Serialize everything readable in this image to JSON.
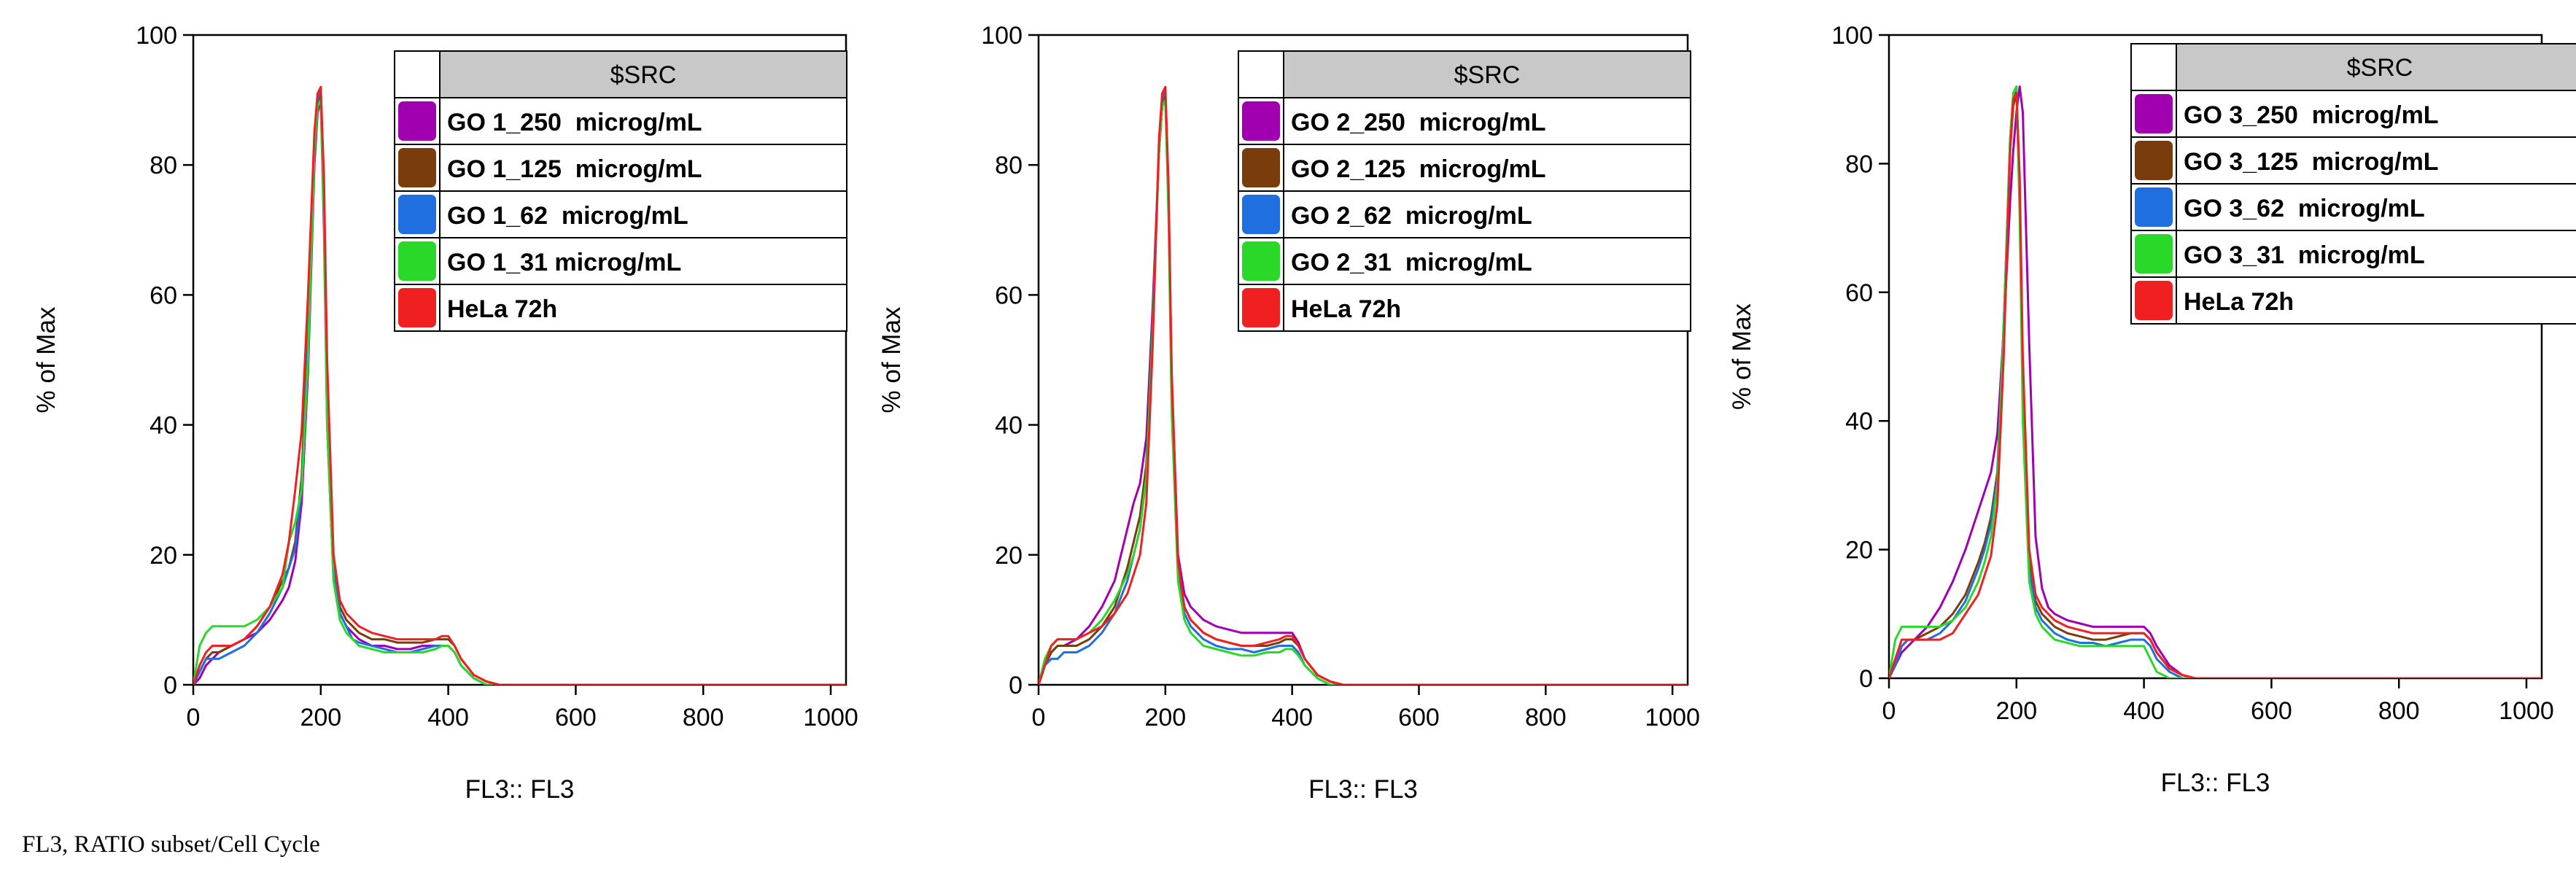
{
  "footer_note": "FL3, RATIO subset/Cell Cycle",
  "legend_header": "$SRC",
  "series_colors": [
    "#a000b0",
    "#7a3c0a",
    "#1f6fe0",
    "#2ad82a",
    "#f02020"
  ],
  "chart_data": [
    {
      "type": "line",
      "xlabel": "FL3:: FL3",
      "ylabel": "% of Max",
      "xlim": [
        0,
        1024
      ],
      "ylim": [
        0,
        100
      ],
      "xticks": [
        0,
        200,
        400,
        600,
        800,
        1000
      ],
      "yticks": [
        0,
        20,
        40,
        60,
        80,
        100
      ],
      "x": [
        0,
        10,
        20,
        30,
        40,
        60,
        80,
        100,
        120,
        140,
        150,
        160,
        170,
        180,
        190,
        195,
        200,
        205,
        210,
        220,
        230,
        240,
        250,
        260,
        280,
        300,
        320,
        340,
        360,
        380,
        390,
        400,
        410,
        420,
        440,
        460,
        480,
        500,
        550,
        600,
        700,
        800,
        900,
        1000,
        1024
      ],
      "series": [
        {
          "name": "GO 1_250  microg/mL",
          "values": [
            0,
            1,
            3,
            4,
            5,
            6,
            7,
            8,
            10,
            13,
            15,
            19,
            28,
            48,
            80,
            88,
            90,
            70,
            40,
            16,
            11,
            9,
            8,
            7,
            6,
            6,
            5.5,
            5.5,
            6,
            6,
            6,
            6,
            5,
            3,
            1,
            0,
            0,
            0,
            0,
            0,
            0,
            0,
            0,
            0,
            0
          ]
        },
        {
          "name": "GO 1_125  microg/mL",
          "values": [
            0,
            2,
            4,
            5,
            5,
            6,
            7,
            9,
            12,
            16,
            18,
            22,
            32,
            55,
            82,
            89,
            91,
            74,
            42,
            18,
            12,
            10,
            9,
            8,
            7,
            7,
            6.5,
            6.5,
            6.5,
            7,
            7,
            7,
            6,
            4,
            1.5,
            0.5,
            0,
            0,
            0,
            0,
            0,
            0,
            0,
            0,
            0
          ]
        },
        {
          "name": "GO 1_62  microg/mL",
          "values": [
            0,
            2,
            4,
            4,
            4,
            5,
            6,
            8,
            11,
            15,
            18,
            21,
            30,
            52,
            82,
            90,
            92,
            75,
            45,
            18,
            11,
            9,
            7,
            6.5,
            6,
            5.5,
            5,
            5,
            5.5,
            6,
            6,
            6,
            5,
            3,
            1,
            0,
            0,
            0,
            0,
            0,
            0,
            0,
            0,
            0,
            0
          ]
        },
        {
          "name": "GO 1_31 microg/mL",
          "values": [
            0,
            6,
            8,
            9,
            9,
            9,
            9,
            10,
            12,
            15,
            22,
            25,
            30,
            50,
            82,
            89,
            90,
            72,
            40,
            16,
            10,
            8,
            7,
            6,
            5.5,
            5,
            5,
            5,
            5,
            5.5,
            6,
            6,
            5,
            3,
            1,
            0,
            0,
            0,
            0,
            0,
            0,
            0,
            0,
            0,
            0
          ]
        },
        {
          "name": "HeLa 72h",
          "values": [
            0,
            3,
            5,
            6,
            6,
            6,
            7,
            9,
            12,
            17,
            22,
            30,
            39,
            60,
            85,
            91,
            92,
            78,
            50,
            20,
            13,
            11,
            10,
            9,
            8,
            7.5,
            7,
            7,
            7,
            7,
            7.5,
            7.5,
            6,
            4,
            1.5,
            0.5,
            0,
            0,
            0,
            0,
            0,
            0,
            0,
            0,
            0
          ]
        }
      ]
    },
    {
      "type": "line",
      "xlabel": "FL3:: FL3",
      "ylabel": "% of Max",
      "xlim": [
        0,
        1024
      ],
      "ylim": [
        0,
        100
      ],
      "xticks": [
        0,
        200,
        400,
        600,
        800,
        1000
      ],
      "yticks": [
        0,
        20,
        40,
        60,
        80,
        100
      ],
      "x": [
        0,
        10,
        20,
        30,
        40,
        60,
        80,
        100,
        120,
        140,
        150,
        160,
        170,
        180,
        190,
        195,
        200,
        205,
        210,
        220,
        230,
        240,
        250,
        260,
        280,
        300,
        320,
        340,
        360,
        380,
        390,
        400,
        410,
        420,
        440,
        460,
        480,
        500,
        550,
        600,
        700,
        800,
        900,
        1000,
        1024
      ],
      "series": [
        {
          "name": "GO 2_250  microg/mL",
          "values": [
            0,
            3,
            5,
            6,
            6,
            7,
            9,
            12,
            16,
            24,
            28,
            31,
            38,
            58,
            82,
            89,
            91,
            75,
            48,
            20,
            14,
            12,
            11,
            10,
            9,
            8.5,
            8,
            8,
            8,
            8,
            8,
            8,
            6.5,
            4,
            1.5,
            0.5,
            0,
            0,
            0,
            0,
            0,
            0,
            0,
            0,
            0
          ]
        },
        {
          "name": "GO 2_125  microg/mL",
          "values": [
            0,
            3,
            5,
            6,
            6,
            6,
            7,
            9,
            12,
            18,
            22,
            26,
            34,
            56,
            82,
            89,
            91,
            74,
            44,
            18,
            12,
            10,
            9,
            8,
            7,
            6.5,
            6,
            6,
            6,
            6.5,
            7,
            7,
            6,
            4,
            1.5,
            0.5,
            0,
            0,
            0,
            0,
            0,
            0,
            0,
            0,
            0
          ]
        },
        {
          "name": "GO 2_62  microg/mL",
          "values": [
            0,
            3,
            4,
            4,
            5,
            5,
            6,
            8,
            11,
            16,
            20,
            24,
            32,
            55,
            83,
            90,
            92,
            76,
            46,
            18,
            11,
            9,
            8,
            7,
            6,
            5.5,
            5.5,
            5,
            5.5,
            6,
            6,
            6,
            5,
            3,
            1,
            0,
            0,
            0,
            0,
            0,
            0,
            0,
            0,
            0,
            0
          ]
        },
        {
          "name": "GO 2_31  microg/mL",
          "values": [
            0,
            4,
            6,
            7,
            7,
            7,
            8,
            10,
            13,
            17,
            20,
            24,
            32,
            54,
            82,
            89,
            90,
            72,
            42,
            16,
            10,
            8,
            7,
            6,
            5.5,
            5,
            4.5,
            4.5,
            5,
            5,
            5.5,
            5.5,
            4.5,
            3,
            1,
            0,
            0,
            0,
            0,
            0,
            0,
            0,
            0,
            0,
            0
          ]
        },
        {
          "name": "HeLa 72h",
          "values": [
            0,
            3,
            6,
            7,
            7,
            7,
            8,
            9,
            11,
            14,
            17,
            20,
            28,
            52,
            84,
            91,
            92,
            77,
            48,
            19,
            12,
            10,
            9,
            8,
            7,
            6.5,
            6,
            6,
            6.5,
            7,
            7.5,
            7.5,
            6,
            4,
            1.5,
            0.5,
            0,
            0,
            0,
            0,
            0,
            0,
            0,
            0,
            0
          ]
        }
      ]
    },
    {
      "type": "line",
      "xlabel": "FL3:: FL3",
      "ylabel": "% of Max",
      "xlim": [
        0,
        1024
      ],
      "ylim": [
        0,
        100
      ],
      "xticks": [
        0,
        200,
        400,
        600,
        800,
        1000
      ],
      "yticks": [
        0,
        20,
        40,
        60,
        80,
        100
      ],
      "x": [
        0,
        10,
        20,
        30,
        40,
        60,
        80,
        100,
        120,
        140,
        150,
        160,
        170,
        180,
        190,
        195,
        200,
        205,
        210,
        220,
        230,
        240,
        250,
        260,
        280,
        300,
        320,
        340,
        360,
        380,
        390,
        400,
        410,
        420,
        440,
        460,
        480,
        500,
        550,
        600,
        700,
        800,
        900,
        1000,
        1024
      ],
      "series": [
        {
          "name": "GO 3_250  microg/mL",
          "values": [
            0,
            2,
            4,
            5,
            6,
            8,
            11,
            15,
            20,
            26,
            29,
            32,
            38,
            54,
            74,
            82,
            88,
            92,
            88,
            52,
            22,
            14,
            11,
            10,
            9,
            8.5,
            8,
            8,
            8,
            8,
            8,
            8,
            7,
            5,
            2,
            0.5,
            0,
            0,
            0,
            0,
            0,
            0,
            0,
            0,
            0
          ]
        },
        {
          "name": "GO 3_125  microg/mL",
          "values": [
            0,
            2,
            5,
            6,
            6,
            7,
            8,
            10,
            13,
            18,
            21,
            25,
            32,
            55,
            82,
            89,
            91,
            76,
            46,
            18,
            12,
            10,
            9,
            8,
            7,
            6.5,
            6,
            6,
            6.5,
            7,
            7,
            7,
            6,
            4,
            1.5,
            0.5,
            0,
            0,
            0,
            0,
            0,
            0,
            0,
            0,
            0
          ]
        },
        {
          "name": "GO 3_62  microg/mL",
          "values": [
            0,
            2,
            5,
            6,
            6,
            6,
            7,
            9,
            12,
            17,
            20,
            24,
            31,
            55,
            84,
            90,
            92,
            74,
            44,
            17,
            11,
            9,
            8,
            7,
            6,
            5.5,
            5.5,
            5,
            5.5,
            6,
            6,
            6,
            5,
            3,
            1,
            0,
            0,
            0,
            0,
            0,
            0,
            0,
            0,
            0,
            0
          ]
        },
        {
          "name": "GO 3_31  microg/mL",
          "values": [
            0,
            6,
            8,
            8,
            8,
            8,
            8,
            9,
            11,
            15,
            18,
            22,
            30,
            54,
            84,
            91,
            92,
            72,
            40,
            15,
            10,
            8,
            7,
            6,
            5.5,
            5,
            5,
            5,
            5,
            5,
            5,
            5,
            3,
            1,
            0,
            0,
            0,
            0,
            0,
            0,
            0,
            0,
            0,
            0,
            0
          ]
        },
        {
          "name": "HeLa 72h",
          "values": [
            0,
            3,
            6,
            6,
            6,
            6,
            6,
            7,
            10,
            13,
            16,
            19,
            27,
            50,
            82,
            90,
            91,
            78,
            50,
            20,
            13,
            11,
            10,
            9,
            8,
            7.5,
            7,
            7,
            7,
            7,
            7,
            7,
            6,
            4,
            1.5,
            0.5,
            0,
            0,
            0,
            0,
            0,
            0,
            0,
            0,
            0
          ]
        }
      ]
    }
  ]
}
